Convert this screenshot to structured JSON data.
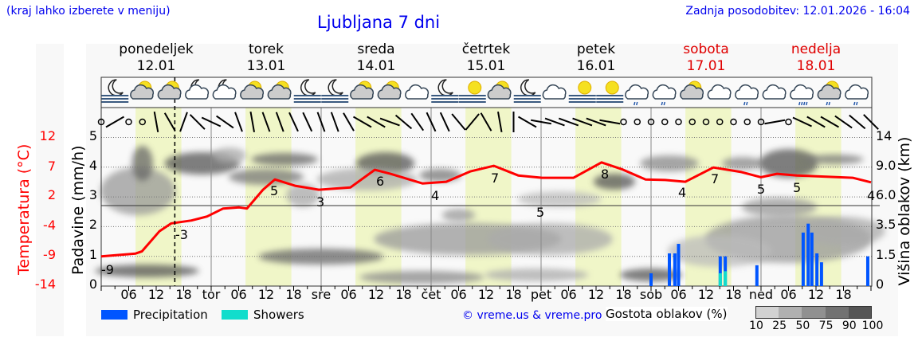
{
  "header": {
    "hint": "(kraj lahko izberete v meniju)",
    "title": "Ljubljana 7 dni",
    "updated": "Zadnja posodobitev: 12.01.2026 - 16:04"
  },
  "days": [
    {
      "name": "ponedeljek",
      "date": "12.01",
      "weekend": false
    },
    {
      "name": "torek",
      "date": "13.01",
      "weekend": false
    },
    {
      "name": "sreda",
      "date": "14.01",
      "weekend": false
    },
    {
      "name": "četrtek",
      "date": "15.01",
      "weekend": false
    },
    {
      "name": "petek",
      "date": "16.01",
      "weekend": false
    },
    {
      "name": "sobota",
      "date": "17.01",
      "weekend": true
    },
    {
      "name": "nedelja",
      "date": "18.01",
      "weekend": true
    }
  ],
  "weather_icons": [
    "moon-fog",
    "sun-cloud",
    "sun-cloud",
    "moon-cloud",
    "moon-cloud",
    "sun-cloud",
    "sun-cloud",
    "moon-fog",
    "moon-fog",
    "sun-cloud",
    "sun-cloud",
    "cloud",
    "moon-fog",
    "sun-fog",
    "sun-cloud",
    "moon-fog",
    "cloud",
    "sun-fog",
    "sun-fog",
    "cloud-rain",
    "cloud-rain",
    "sun-cloud",
    "cloud",
    "cloud-rain",
    "cloud",
    "cloud-rain-heavy",
    "sun-cloud-rain",
    "cloud-rain"
  ],
  "chart_data": {
    "type": "line",
    "x_ticks": [
      "06",
      "12",
      "18",
      "tor",
      "06",
      "12",
      "18",
      "sre",
      "06",
      "12",
      "18",
      "čet",
      "06",
      "12",
      "18",
      "pet",
      "06",
      "12",
      "18",
      "sob",
      "06",
      "12",
      "18",
      "ned",
      "06",
      "12",
      "18"
    ],
    "temperature": {
      "axis_label": "Temperatura (°C)",
      "ticks": [
        "12",
        "7",
        "2",
        "-4",
        "-9",
        "-14"
      ],
      "ylim": [
        -14,
        12
      ],
      "color": "#ff0000",
      "x": [
        "12.01 00:00",
        "12.01 07:30",
        "12.01 08:54",
        "12.01 12:42",
        "12.01 15:18",
        "12.01 19:42",
        "12.01 23:06",
        "13.01 02:36",
        "13.01 06:06",
        "13.01 07:48",
        "13.01 11:18",
        "13.01 13:54",
        "13.01 18:18",
        "13.01 23:30",
        "14.01 06:24",
        "14.01 11:42",
        "14.01 15:06",
        "14.01 22:06",
        "15.01 03:18",
        "15.01 08:30",
        "15.01 13:42",
        "15.01 19:00",
        "16.01 00:12",
        "16.01 07:06",
        "16.01 13:12",
        "16.01 17:36",
        "16.01 22:48",
        "17.01 03:06",
        "17.01 07:30",
        "17.01 13:36",
        "17.01 19:42",
        "18.01 00:00",
        "18.01 03:30",
        "18.01 07:48",
        "18.01 20:00",
        "19.01 00:00"
      ],
      "y": [
        -8.8,
        -8.3,
        -7.9,
        -4.4,
        -3.0,
        -2.5,
        -1.8,
        -0.4,
        -0.2,
        -0.4,
        2.9,
        4.7,
        3.6,
        2.9,
        3.3,
        6.4,
        5.7,
        4.0,
        4.3,
        6.1,
        7.1,
        5.4,
        5.0,
        5.0,
        7.7,
        6.5,
        4.7,
        4.6,
        4.3,
        6.8,
        6.0,
        5.1,
        5.7,
        5.4,
        5.0,
        4.2
      ],
      "extreme_labels": [
        "-9",
        "-3",
        "5",
        "3",
        "6",
        "4",
        "7",
        "5",
        "8",
        "4",
        "7",
        "5",
        "5",
        "4"
      ]
    },
    "precipitation": {
      "axis_label": "Padavine (mm/h)",
      "ticks": [
        "0",
        "1",
        "2",
        "3",
        "4",
        "5"
      ],
      "ylim": [
        0,
        5
      ],
      "series": [
        {
          "name": "Precipitation",
          "color": "#0055ff",
          "x": [
            "17.01 00:00",
            "17.01 04:00",
            "17.01 05:12",
            "17.01 06:00",
            "17.01 15:06",
            "17.01 16:12",
            "17.01 23:06",
            "18.01 09:12",
            "18.01 10:18",
            "18.01 11:06",
            "18.01 12:12",
            "18.01 13:12",
            "18.01 23:18"
          ],
          "values": [
            0.43,
            1.1,
            1.1,
            1.42,
            1.0,
            1.0,
            0.7,
            1.8,
            2.1,
            1.8,
            1.1,
            0.8,
            1.0
          ]
        },
        {
          "name": "Showers",
          "color": "#11ddcc",
          "x": [
            "17.01 15:06",
            "17.01 16:12"
          ],
          "values": [
            0.43,
            0.5
          ]
        }
      ]
    },
    "cloud_height": {
      "axis_label": "Višina oblakov (km)",
      "ticks": [
        "0",
        "1.5",
        "3.5",
        "6.0",
        "9.0",
        "14"
      ]
    },
    "cloud_density": {
      "label": "Gostota oblakov (%)",
      "levels": [
        "10",
        "25",
        "50",
        "75",
        "90",
        "100"
      ],
      "colors": [
        "#d2d2d2",
        "#b0b0b0",
        "#909090",
        "#727272",
        "#555555"
      ]
    },
    "grid": true
  },
  "legend": {
    "precipitation": "Precipitation",
    "showers": "Showers",
    "credit": "© vreme.us & vreme.pro"
  }
}
